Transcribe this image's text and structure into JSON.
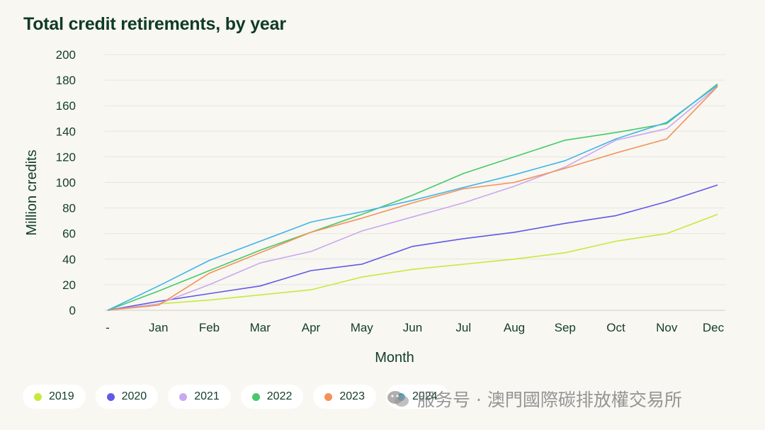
{
  "title": "Total credit retirements, by year",
  "watermark": "服务号 · 澳門國際碳排放權交易所",
  "chart_data": {
    "type": "line",
    "title": "Total credit retirements, by year",
    "xlabel": "Month",
    "ylabel": "Million credits",
    "ylim": [
      0,
      200
    ],
    "yticks": [
      0,
      20,
      40,
      60,
      80,
      100,
      120,
      140,
      160,
      180,
      200
    ],
    "grid": true,
    "legend_position": "bottom",
    "categories": [
      "-",
      "Jan",
      "Feb",
      "Mar",
      "Apr",
      "May",
      "Jun",
      "Jul",
      "Aug",
      "Sep",
      "Oct",
      "Nov",
      "Dec"
    ],
    "series": [
      {
        "name": "2019",
        "color": "#c6ea3c",
        "values": [
          0,
          5,
          8,
          12,
          16,
          26,
          32,
          36,
          40,
          45,
          54,
          60,
          75
        ]
      },
      {
        "name": "2020",
        "color": "#6059e6",
        "values": [
          0,
          7,
          13,
          19,
          31,
          36,
          50,
          56,
          61,
          68,
          74,
          85,
          98
        ]
      },
      {
        "name": "2021",
        "color": "#c9a8f0",
        "values": [
          0,
          5,
          20,
          37,
          46,
          62,
          73,
          84,
          97,
          112,
          133,
          142,
          175
        ]
      },
      {
        "name": "2022",
        "color": "#45c96b",
        "values": [
          0,
          15,
          31,
          47,
          61,
          75,
          90,
          107,
          120,
          133,
          139,
          146,
          177
        ]
      },
      {
        "name": "2023",
        "color": "#f59058",
        "values": [
          0,
          4,
          29,
          45,
          61,
          72,
          84,
          95,
          100,
          111,
          123,
          134,
          175
        ]
      },
      {
        "name": "2024",
        "color": "#3fb5e8",
        "values": [
          0,
          19,
          39,
          54,
          69,
          77,
          86,
          96,
          106,
          117,
          134,
          147,
          176
        ]
      }
    ]
  }
}
